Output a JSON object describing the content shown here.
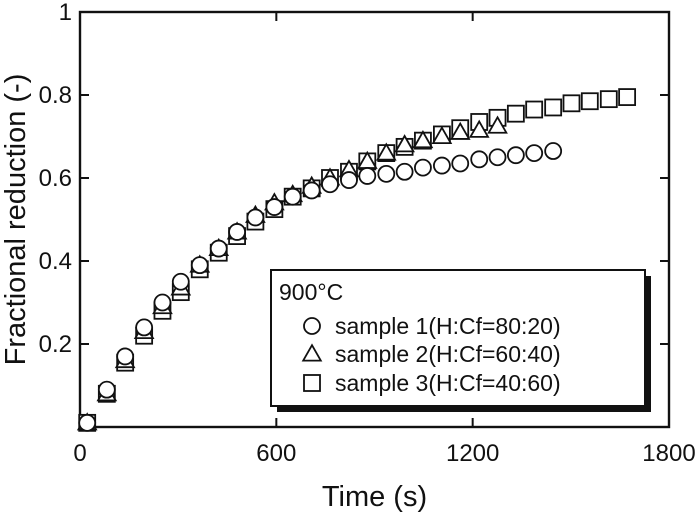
{
  "chart_data": {
    "type": "scatter",
    "xlabel": "Time (s)",
    "ylabel": "Fractional reduction (-)",
    "xlim": [
      0,
      1800
    ],
    "ylim": [
      0,
      1
    ],
    "xticks": [
      0,
      600,
      1200,
      1800
    ],
    "yticks": [
      0.2,
      0.4,
      0.6,
      0.8,
      1
    ],
    "ytick_labels": [
      "0.2",
      "0.4",
      "0.6",
      "0.8",
      "1"
    ],
    "grid": false,
    "legend": {
      "title": "900°C",
      "placement": "bottom-right",
      "entries": [
        "sample 1(H:Cf=80:20)",
        "sample 2(H:Cf=60:40)",
        "sample 3(H:Cf=40:60)"
      ]
    },
    "series": [
      {
        "name": "sample 1(H:Cf=80:20)",
        "marker": "circle",
        "x": [
          22,
          82,
          138,
          196,
          252,
          308,
          366,
          424,
          480,
          536,
          594,
          650,
          708,
          764,
          822,
          878,
          936,
          992,
          1048,
          1106,
          1162,
          1220,
          1276,
          1332,
          1388,
          1446
        ],
        "y": [
          0.01,
          0.09,
          0.17,
          0.24,
          0.3,
          0.35,
          0.39,
          0.43,
          0.47,
          0.505,
          0.53,
          0.555,
          0.57,
          0.585,
          0.595,
          0.605,
          0.61,
          0.615,
          0.625,
          0.63,
          0.635,
          0.645,
          0.65,
          0.655,
          0.66,
          0.665
        ]
      },
      {
        "name": "sample 2(H:Cf=60:40)",
        "marker": "triangle",
        "x": [
          22,
          82,
          138,
          196,
          252,
          308,
          366,
          424,
          480,
          536,
          594,
          650,
          708,
          764,
          822,
          878,
          936,
          992,
          1048,
          1106,
          1162,
          1220,
          1276
        ],
        "y": [
          0.01,
          0.08,
          0.16,
          0.23,
          0.29,
          0.335,
          0.39,
          0.43,
          0.47,
          0.51,
          0.54,
          0.56,
          0.58,
          0.6,
          0.62,
          0.64,
          0.66,
          0.68,
          0.69,
          0.7,
          0.71,
          0.715,
          0.725
        ]
      },
      {
        "name": "sample 3(H:Cf=40:60)",
        "marker": "square",
        "x": [
          22,
          82,
          138,
          196,
          252,
          308,
          366,
          424,
          480,
          536,
          594,
          650,
          708,
          764,
          822,
          878,
          936,
          992,
          1048,
          1106,
          1162,
          1220,
          1276,
          1332,
          1388,
          1446,
          1502,
          1558,
          1616,
          1672
        ],
        "y": [
          0.01,
          0.08,
          0.155,
          0.22,
          0.28,
          0.325,
          0.38,
          0.42,
          0.46,
          0.495,
          0.525,
          0.555,
          0.575,
          0.6,
          0.615,
          0.64,
          0.66,
          0.675,
          0.69,
          0.705,
          0.72,
          0.735,
          0.745,
          0.755,
          0.765,
          0.77,
          0.78,
          0.785,
          0.79,
          0.795
        ]
      }
    ]
  }
}
